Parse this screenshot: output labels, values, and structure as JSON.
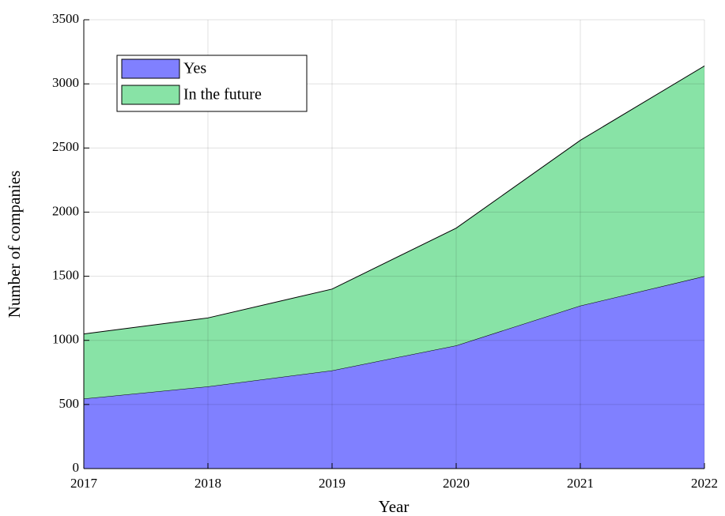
{
  "chart_data": {
    "type": "stacked-area",
    "x": [
      2017,
      2018,
      2019,
      2020,
      2021,
      2022
    ],
    "series": [
      {
        "name": "Yes",
        "color": "#8080ff",
        "values": [
          545,
          640,
          765,
          960,
          1270,
          1500
        ]
      },
      {
        "name": "In the future",
        "color": "#88e3a6",
        "values": [
          505,
          535,
          635,
          915,
          1290,
          1640
        ]
      }
    ],
    "xlim": [
      2017,
      2022
    ],
    "xticks": [
      2017,
      2018,
      2019,
      2020,
      2021,
      2022
    ],
    "ylim": [
      0,
      3500
    ],
    "yticks": [
      0,
      500,
      1000,
      1500,
      2000,
      2500,
      3000,
      3500
    ],
    "xlabel": "Year",
    "ylabel": "Number of companies",
    "grid": true,
    "legend": "upper left"
  }
}
